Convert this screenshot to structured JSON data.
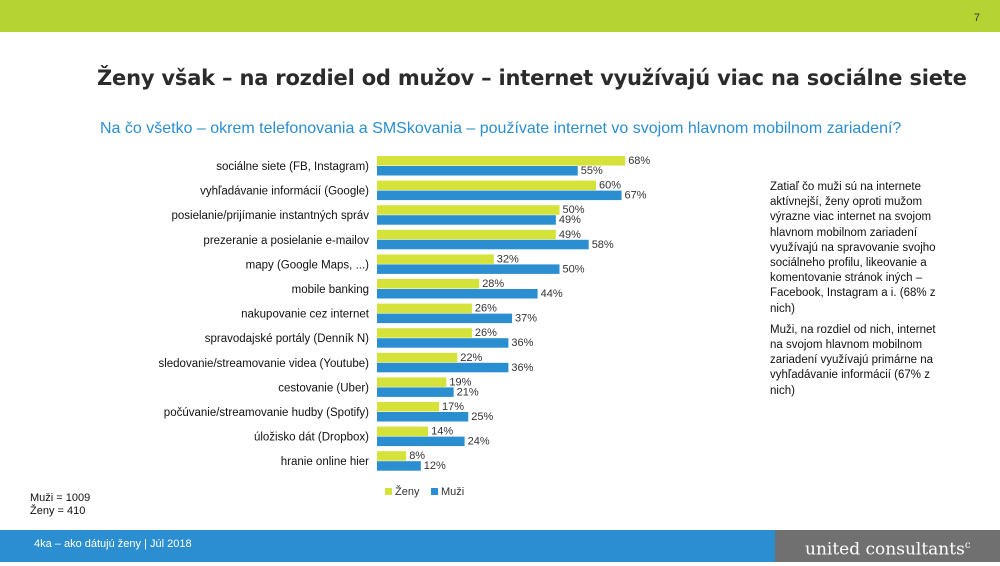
{
  "page_number": "7",
  "title": "Ženy však – na rozdiel od mužov – internet využívajú viac na sociálne siete",
  "subtitle": "Na čo všetko – okrem telefonovania a SMSkovania – používate internet vo svojom hlavnom mobilnom zariadení?",
  "side_text": {
    "paragraph1": "Zatiaľ čo muži sú na internete aktívnejší, ženy oproti mužom výrazne viac internet na svojom hlavnom mobilnom zariadení využívajú na spravovanie svojho sociálneho profilu, likeovanie a komentovanie stránok iných – Facebook, Instagram a i. (68% z nich)",
    "paragraph2": "Muži, na rozdiel od nich, internet na svojom hlavnom mobilnom zariadení využívajú primárne na vyhľadávanie informácií (67% z nich)"
  },
  "sample": {
    "men": "Muži = 1009",
    "women": "Ženy = 410"
  },
  "footer": {
    "text": "4ka – ako dátujú ženy | Júl 2018",
    "brand": "united consultants",
    "brand_mark": "c"
  },
  "colors": {
    "top_bar": "#b6d334",
    "women": "#d4e23a",
    "men": "#2b8ed0",
    "footer": "#2b8ed0",
    "brand_box": "#707070"
  },
  "chart_data": {
    "type": "bar",
    "orientation": "horizontal",
    "categories": [
      "sociálne siete (FB, Instagram)",
      "vyhľadávanie informácií (Google)",
      "posielanie/prijímanie instantných správ",
      "prezeranie a posielanie e-mailov",
      "mapy (Google Maps, ...)",
      "mobile banking",
      "nakupovanie cez internet",
      "spravodajské portály (Denník N)",
      "sledovanie/streamovanie videa (Youtube)",
      "cestovanie (Uber)",
      "počúvanie/streamovanie hudby (Spotify)",
      "úložisko dát (Dropbox)",
      "hranie online hier"
    ],
    "series": [
      {
        "name": "Ženy",
        "values": [
          68,
          60,
          50,
          49,
          32,
          28,
          26,
          26,
          22,
          19,
          17,
          14,
          8
        ]
      },
      {
        "name": "Muži",
        "values": [
          55,
          67,
          49,
          58,
          50,
          44,
          37,
          36,
          36,
          21,
          25,
          24,
          12
        ]
      }
    ],
    "value_suffix": "%",
    "xlim": [
      0,
      100
    ],
    "legend": "bottom",
    "grid": false
  }
}
